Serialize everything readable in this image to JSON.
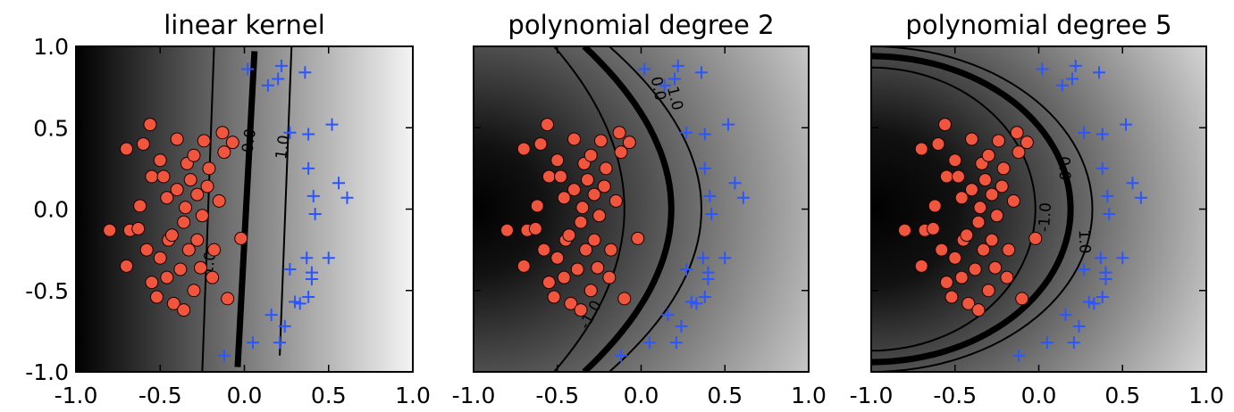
{
  "colors": {
    "class_a": "#f0553e",
    "class_a_edge": "#1a0000",
    "class_b": "#2a55ff",
    "gradient_dark": "#000000",
    "gradient_light": "#f4f4f4",
    "contour": "#000000"
  },
  "chart_data": [
    {
      "type": "scatter",
      "title": "linear kernel",
      "xlim": [
        -1.0,
        1.0
      ],
      "ylim": [
        -1.0,
        1.0
      ],
      "x_ticks": [
        "-1.0",
        "-0.5",
        "0.0",
        "0.5",
        "1.0"
      ],
      "y_ticks": [
        "1.0",
        "0.5",
        "0.0",
        "-0.5",
        "-1.0"
      ],
      "contour_labels": [
        "0.0",
        "-1.0",
        "1.0"
      ]
    },
    {
      "type": "scatter",
      "title": "polynomial degree 2",
      "xlim": [
        -1.0,
        1.0
      ],
      "ylim": [
        -1.0,
        1.0
      ],
      "x_ticks": [
        "-1.0",
        "-0.5",
        "0.0",
        "0.5",
        "1.0"
      ],
      "contour_labels": [
        "0.0",
        "1.0",
        "-1.0"
      ]
    },
    {
      "type": "scatter",
      "title": "polynomial degree 5",
      "xlim": [
        -1.0,
        1.0
      ],
      "ylim": [
        -1.0,
        1.0
      ],
      "x_ticks": [
        "-1.0",
        "-0.5",
        "0.0",
        "0.5",
        "1.0"
      ],
      "contour_labels": [
        "0.0",
        "-1.0",
        "1.0"
      ]
    }
  ],
  "points": {
    "circles": [
      [
        -0.8,
        -0.13
      ],
      [
        -0.7,
        0.37
      ],
      [
        -0.68,
        -0.13
      ],
      [
        -0.7,
        -0.35
      ],
      [
        -0.63,
        -0.12
      ],
      [
        -0.62,
        0.02
      ],
      [
        -0.6,
        0.4
      ],
      [
        -0.56,
        0.52
      ],
      [
        -0.58,
        -0.25
      ],
      [
        -0.55,
        -0.45
      ],
      [
        -0.55,
        0.2
      ],
      [
        -0.52,
        -0.54
      ],
      [
        -0.5,
        0.3
      ],
      [
        -0.5,
        -0.3
      ],
      [
        -0.48,
        0.2
      ],
      [
        -0.46,
        -0.42
      ],
      [
        -0.46,
        0.07
      ],
      [
        -0.45,
        -0.19
      ],
      [
        -0.43,
        -0.16
      ],
      [
        -0.4,
        0.43
      ],
      [
        -0.42,
        -0.58
      ],
      [
        -0.4,
        0.12
      ],
      [
        -0.38,
        -0.37
      ],
      [
        -0.36,
        -0.08
      ],
      [
        -0.36,
        -0.62
      ],
      [
        -0.35,
        0.01
      ],
      [
        -0.34,
        0.28
      ],
      [
        -0.33,
        -0.25
      ],
      [
        -0.32,
        0.18
      ],
      [
        -0.3,
        0.33
      ],
      [
        -0.3,
        -0.5
      ],
      [
        -0.28,
        0.09
      ],
      [
        -0.28,
        -0.19
      ],
      [
        -0.26,
        -0.36
      ],
      [
        -0.25,
        -0.04
      ],
      [
        -0.24,
        0.42
      ],
      [
        -0.22,
        0.14
      ],
      [
        -0.21,
        0.25
      ],
      [
        -0.19,
        -0.42
      ],
      [
        -0.18,
        -0.25
      ],
      [
        -0.15,
        0.05
      ],
      [
        -0.13,
        0.47
      ],
      [
        -0.12,
        0.35
      ],
      [
        -0.1,
        -0.55
      ],
      [
        -0.07,
        0.41
      ],
      [
        -0.02,
        -0.18
      ]
    ],
    "pluses": [
      [
        -0.12,
        -0.9
      ],
      [
        0.02,
        0.86
      ],
      [
        0.05,
        -0.82
      ],
      [
        0.14,
        0.76
      ],
      [
        0.16,
        -0.65
      ],
      [
        0.2,
        0.8
      ],
      [
        0.21,
        -0.82
      ],
      [
        0.22,
        0.88
      ],
      [
        0.24,
        -0.72
      ],
      [
        0.27,
        0.47
      ],
      [
        0.27,
        -0.37
      ],
      [
        0.3,
        -0.57
      ],
      [
        0.33,
        -0.58
      ],
      [
        0.36,
        0.84
      ],
      [
        0.37,
        -0.3
      ],
      [
        0.38,
        -0.54
      ],
      [
        0.38,
        0.46
      ],
      [
        0.38,
        0.25
      ],
      [
        0.4,
        -0.39
      ],
      [
        0.4,
        -0.43
      ],
      [
        0.41,
        0.08
      ],
      [
        0.42,
        -0.03
      ],
      [
        0.5,
        -0.3
      ],
      [
        0.52,
        0.52
      ],
      [
        0.56,
        0.16
      ],
      [
        0.61,
        0.07
      ]
    ]
  }
}
